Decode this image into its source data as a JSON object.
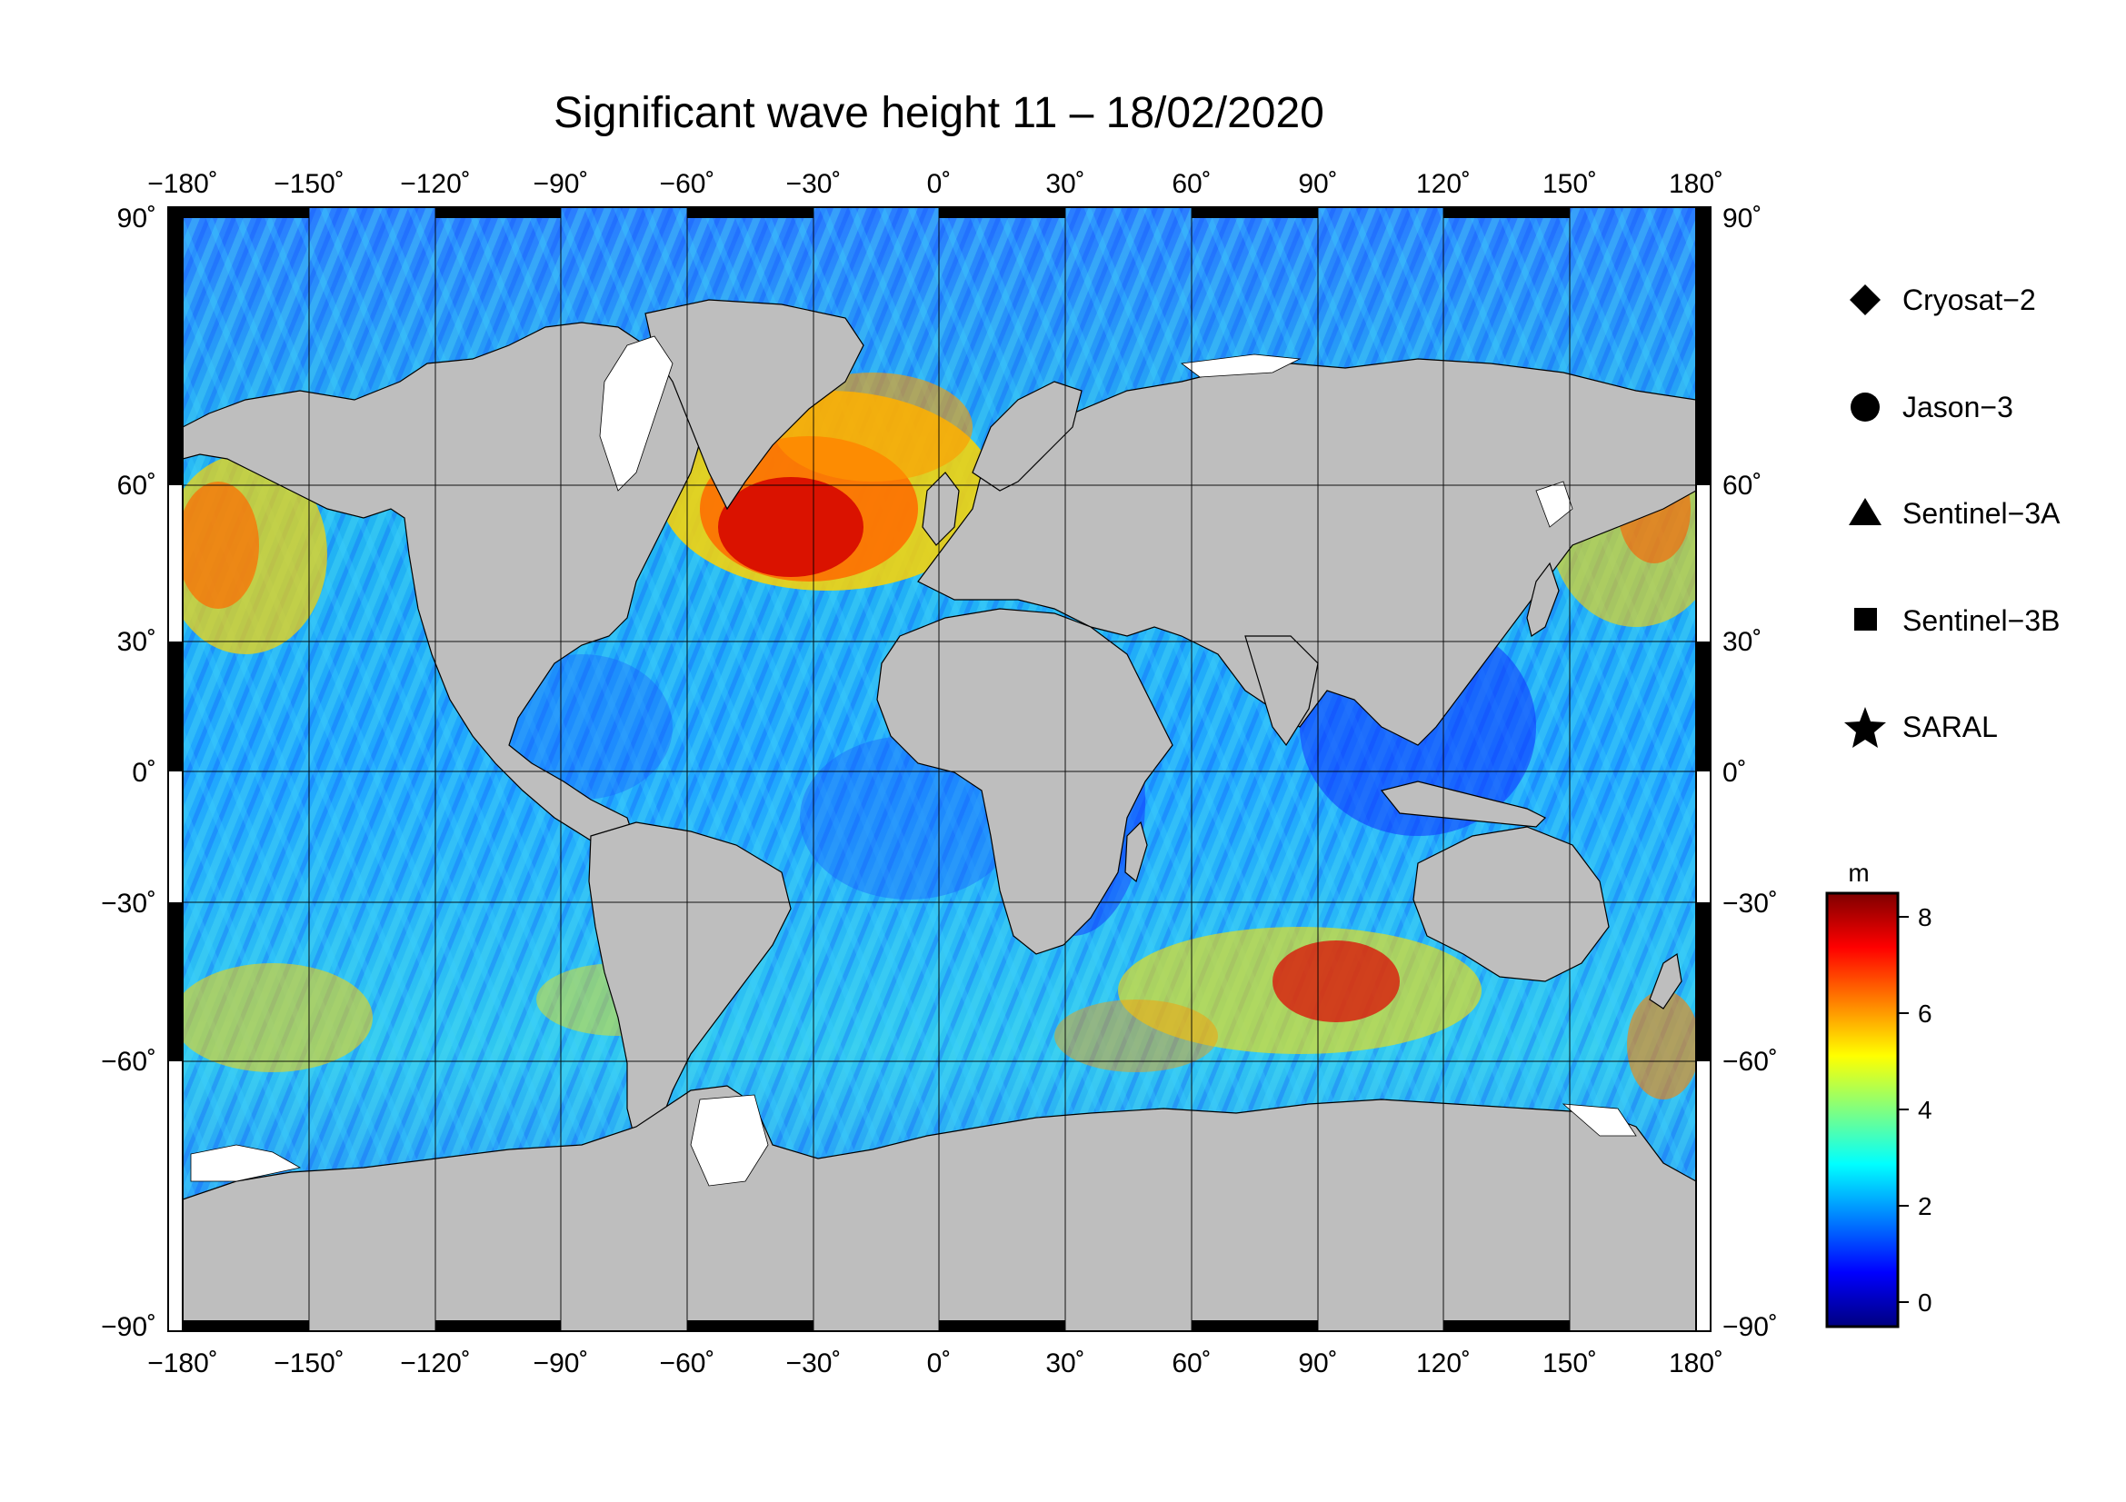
{
  "title": "Significant wave height 11 – 18/02/2020",
  "map": {
    "projection": "equirectangular",
    "lon_range": [
      -180,
      180
    ],
    "lat_range": [
      -90,
      90
    ],
    "grid_interval_deg": 30,
    "land_color": "#bebebe",
    "ice_color": "#ffffff",
    "x_ticks": [
      "−180˚",
      "−150˚",
      "−120˚",
      "−90˚",
      "−60˚",
      "−30˚",
      "0˚",
      "30˚",
      "60˚",
      "90˚",
      "120˚",
      "150˚",
      "180˚"
    ],
    "y_ticks": [
      "90˚",
      "60˚",
      "30˚",
      "0˚",
      "−30˚",
      "−60˚",
      "−90˚"
    ]
  },
  "legend": {
    "items": [
      {
        "label": "Cryosat−2",
        "marker": "diamond"
      },
      {
        "label": "Jason−3",
        "marker": "circle"
      },
      {
        "label": "Sentinel−3A",
        "marker": "triangle"
      },
      {
        "label": "Sentinel−3B",
        "marker": "square"
      },
      {
        "label": "SARAL",
        "marker": "star"
      }
    ]
  },
  "colorbar": {
    "unit": "m",
    "range": [
      -0.5,
      8.5
    ],
    "ticks": [
      "8",
      "6",
      "4",
      "2",
      "0"
    ],
    "colors": [
      "#00007f",
      "#0000ff",
      "#0080ff",
      "#00ffff",
      "#80ff80",
      "#ffff00",
      "#ff8000",
      "#ff0000",
      "#7f0000"
    ]
  }
}
